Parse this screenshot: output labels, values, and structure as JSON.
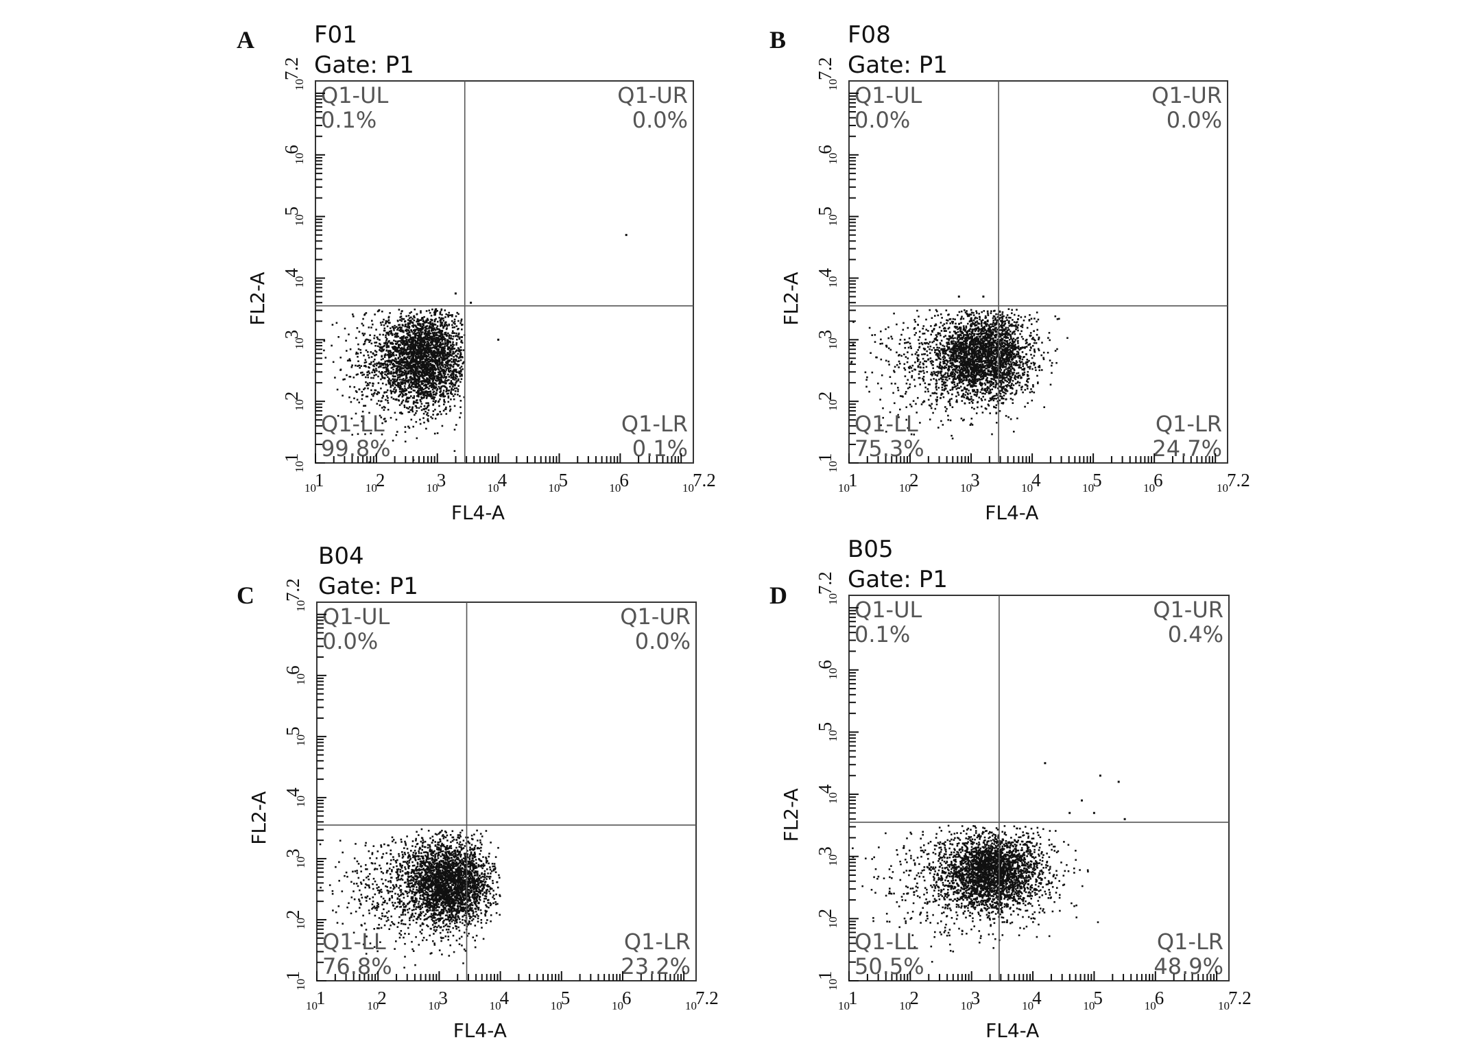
{
  "chart_data": [
    {
      "type": "scatter",
      "panel_label": "A",
      "title": "F01",
      "subtitle": "Gate: P1",
      "xlabel": "FL4-A",
      "ylabel": "FL2-A",
      "xscale": "log",
      "yscale": "log",
      "xlim_exp": [
        1,
        7.2
      ],
      "ylim_exp": [
        1,
        7.2
      ],
      "x_tick_exponents": [
        "1",
        "2",
        "3",
        "4",
        "5",
        "6",
        "7.2"
      ],
      "y_tick_exponents": [
        "1",
        "2",
        "3",
        "4",
        "5",
        "6",
        "7.2"
      ],
      "gate_x_exp": 3.45,
      "gate_y_exp": 3.55,
      "quadrants": [
        {
          "name": "Q1-UL",
          "percent": "0.1%"
        },
        {
          "name": "Q1-UR",
          "percent": "0.0%"
        },
        {
          "name": "Q1-LL",
          "percent": "99.8%"
        },
        {
          "name": "Q1-LR",
          "percent": "0.1%"
        }
      ],
      "populations": [
        {
          "cx": 2.8,
          "cy": 2.7,
          "sx": 0.35,
          "sy": 0.4,
          "n": 2600,
          "xmax": 3.45
        },
        {
          "cx": 2.2,
          "cy": 2.6,
          "sx": 0.45,
          "sy": 0.45,
          "n": 500,
          "xmax": 3.45
        }
      ],
      "outliers": [
        [
          3.55,
          3.6
        ],
        [
          4.0,
          3.0
        ],
        [
          6.1,
          4.7
        ],
        [
          3.3,
          3.75
        ]
      ]
    },
    {
      "type": "scatter",
      "panel_label": "B",
      "title": "F08",
      "subtitle": "Gate: P1",
      "xlabel": "FL4-A",
      "ylabel": "FL2-A",
      "xscale": "log",
      "yscale": "log",
      "xlim_exp": [
        1,
        7.2
      ],
      "ylim_exp": [
        1,
        7.2
      ],
      "x_tick_exponents": [
        "1",
        "2",
        "3",
        "4",
        "5",
        "6",
        "7.2"
      ],
      "y_tick_exponents": [
        "1",
        "2",
        "3",
        "4",
        "5",
        "6",
        "7.2"
      ],
      "gate_x_exp": 3.45,
      "gate_y_exp": 3.55,
      "quadrants": [
        {
          "name": "Q1-UL",
          "percent": "0.0%"
        },
        {
          "name": "Q1-UR",
          "percent": "0.0%"
        },
        {
          "name": "Q1-LL",
          "percent": "75.3%"
        },
        {
          "name": "Q1-LR",
          "percent": "24.7%"
        }
      ],
      "populations": [
        {
          "cx": 3.2,
          "cy": 2.75,
          "sx": 0.4,
          "sy": 0.35,
          "n": 2600,
          "xmax": 4.6
        },
        {
          "cx": 2.6,
          "cy": 2.6,
          "sx": 0.6,
          "sy": 0.45,
          "n": 600,
          "xmax": 4.6
        }
      ],
      "outliers": [
        [
          2.8,
          3.7
        ],
        [
          3.2,
          3.7
        ]
      ]
    },
    {
      "type": "scatter",
      "panel_label": "C",
      "title": "B04",
      "subtitle": "Gate: P1",
      "xlabel": "FL4-A",
      "ylabel": "FL2-A",
      "xscale": "log",
      "yscale": "log",
      "xlim_exp": [
        1,
        7.2
      ],
      "ylim_exp": [
        1,
        7.2
      ],
      "x_tick_exponents": [
        "1",
        "2",
        "3",
        "4",
        "5",
        "6",
        "7.2"
      ],
      "y_tick_exponents": [
        "1",
        "2",
        "3",
        "4",
        "5",
        "6",
        "7.2"
      ],
      "gate_x_exp": 3.45,
      "gate_y_exp": 3.55,
      "quadrants": [
        {
          "name": "Q1-UL",
          "percent": "0.0%"
        },
        {
          "name": "Q1-UR",
          "percent": "0.0%"
        },
        {
          "name": "Q1-LL",
          "percent": "76.8%"
        },
        {
          "name": "Q1-LR",
          "percent": "23.2%"
        }
      ],
      "populations": [
        {
          "cx": 3.15,
          "cy": 2.6,
          "sx": 0.35,
          "sy": 0.35,
          "n": 2600,
          "xmax": 4.0
        },
        {
          "cx": 2.5,
          "cy": 2.5,
          "sx": 0.55,
          "sy": 0.45,
          "n": 600,
          "xmax": 4.0
        }
      ],
      "outliers": [
        [
          2.9,
          3.3
        ]
      ]
    },
    {
      "type": "scatter",
      "panel_label": "D",
      "title": "B05",
      "subtitle": "Gate: P1",
      "xlabel": "FL4-A",
      "ylabel": "FL2-A",
      "xscale": "log",
      "yscale": "log",
      "xlim_exp": [
        1,
        7.2
      ],
      "ylim_exp": [
        1,
        7.2
      ],
      "x_tick_exponents": [
        "1",
        "2",
        "3",
        "4",
        "5",
        "6",
        "7.2"
      ],
      "y_tick_exponents": [
        "1",
        "2",
        "3",
        "4",
        "5",
        "6",
        "7.2"
      ],
      "gate_x_exp": 3.45,
      "gate_y_exp": 3.55,
      "quadrants": [
        {
          "name": "Q1-UL",
          "percent": "0.1%"
        },
        {
          "name": "Q1-UR",
          "percent": "0.4%"
        },
        {
          "name": "Q1-LL",
          "percent": "50.5%"
        },
        {
          "name": "Q1-LR",
          "percent": "48.9%"
        }
      ],
      "populations": [
        {
          "cx": 3.35,
          "cy": 2.75,
          "sx": 0.4,
          "sy": 0.3,
          "n": 2400,
          "xmax": 5.2
        },
        {
          "cx": 3.0,
          "cy": 2.6,
          "sx": 0.75,
          "sy": 0.45,
          "n": 700,
          "xmax": 5.2
        }
      ],
      "outliers": [
        [
          4.8,
          3.9
        ],
        [
          5.1,
          4.3
        ],
        [
          5.4,
          4.2
        ],
        [
          4.2,
          4.5
        ],
        [
          5.0,
          3.7
        ],
        [
          5.5,
          3.6
        ],
        [
          4.6,
          3.7
        ]
      ]
    }
  ]
}
